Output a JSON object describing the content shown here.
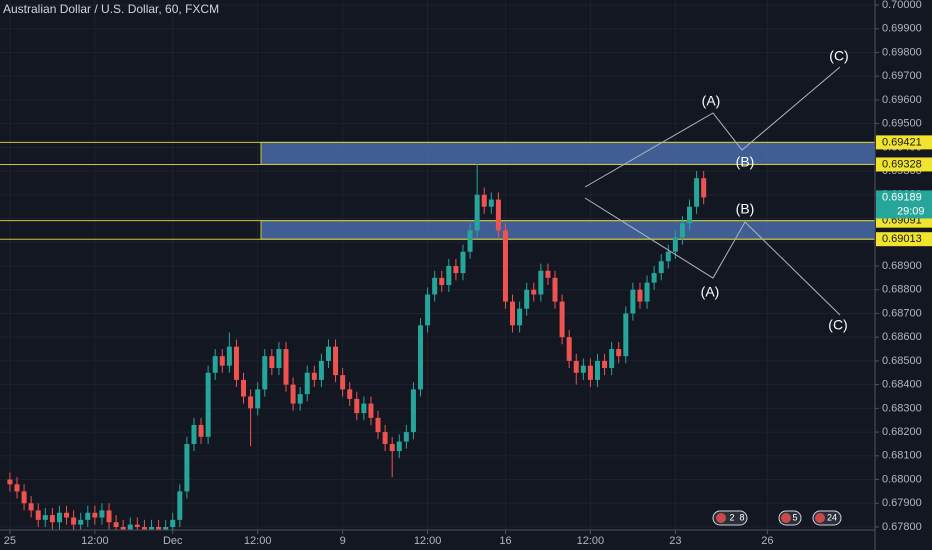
{
  "chart_data": {
    "type": "candlestick",
    "title": "Australian Dollar / U.S. Dollar, 60, FXCM",
    "up_color": "#26a69a",
    "down_color": "#ef5350",
    "grid": true,
    "open": [
      0.68,
      0.6798,
      0.6795,
      0.679,
      0.6787,
      0.6783,
      0.6785,
      0.6782,
      0.6786,
      0.6784,
      0.6781,
      0.6783,
      0.6786,
      0.6784,
      0.6787,
      0.6782,
      0.678,
      0.6779,
      0.6781,
      0.678,
      0.6779,
      0.678,
      0.6779,
      0.678,
      0.6783,
      0.6795,
      0.6815,
      0.6823,
      0.6818,
      0.6845,
      0.6852,
      0.6848,
      0.6856,
      0.6842,
      0.6835,
      0.683,
      0.6838,
      0.6852,
      0.6847,
      0.6855,
      0.684,
      0.6832,
      0.6836,
      0.6845,
      0.6842,
      0.685,
      0.6856,
      0.6844,
      0.6838,
      0.6834,
      0.6828,
      0.6832,
      0.6826,
      0.682,
      0.6815,
      0.6812,
      0.6816,
      0.682,
      0.6838,
      0.6865,
      0.6878,
      0.6885,
      0.6882,
      0.689,
      0.6887,
      0.6896,
      0.6905,
      0.692,
      0.6915,
      0.6918,
      0.6905,
      0.6875,
      0.6865,
      0.6872,
      0.688,
      0.6878,
      0.6888,
      0.6885,
      0.6875,
      0.686,
      0.685,
      0.6845,
      0.6848,
      0.6842,
      0.685,
      0.6847,
      0.6855,
      0.6852,
      0.687,
      0.688,
      0.6875,
      0.6883,
      0.6887,
      0.6892,
      0.6896,
      0.6902,
      0.6908,
      0.6915,
      0.6927
    ],
    "high": [
      0.6803,
      0.6801,
      0.6798,
      0.6793,
      0.679,
      0.6788,
      0.6788,
      0.6789,
      0.6789,
      0.6787,
      0.6786,
      0.6789,
      0.6789,
      0.679,
      0.679,
      0.6785,
      0.6783,
      0.6784,
      0.6784,
      0.6783,
      0.6783,
      0.6783,
      0.6783,
      0.6786,
      0.6798,
      0.6818,
      0.6826,
      0.6826,
      0.6848,
      0.6855,
      0.6855,
      0.6862,
      0.6859,
      0.6845,
      0.6838,
      0.6841,
      0.6855,
      0.6855,
      0.6858,
      0.6858,
      0.6843,
      0.6839,
      0.6848,
      0.6848,
      0.6853,
      0.6859,
      0.6859,
      0.6847,
      0.6841,
      0.6837,
      0.6835,
      0.6835,
      0.6829,
      0.6823,
      0.6818,
      0.6819,
      0.6823,
      0.6841,
      0.6868,
      0.6881,
      0.6888,
      0.6888,
      0.6893,
      0.6893,
      0.6899,
      0.6908,
      0.6933,
      0.6923,
      0.6921,
      0.6921,
      0.6908,
      0.6878,
      0.6875,
      0.6883,
      0.6883,
      0.6891,
      0.6891,
      0.6888,
      0.6878,
      0.6863,
      0.6853,
      0.6851,
      0.6851,
      0.6853,
      0.6853,
      0.6858,
      0.6858,
      0.6873,
      0.6883,
      0.6883,
      0.6886,
      0.689,
      0.6895,
      0.6899,
      0.6905,
      0.6911,
      0.6918,
      0.693,
      0.693
    ],
    "low": [
      0.6795,
      0.6792,
      0.6787,
      0.6784,
      0.678,
      0.678,
      0.6779,
      0.6779,
      0.6781,
      0.6778,
      0.6778,
      0.678,
      0.6781,
      0.6781,
      0.6779,
      0.6777,
      0.6776,
      0.6776,
      0.6777,
      0.6776,
      0.6776,
      0.6776,
      0.6776,
      0.6777,
      0.678,
      0.6792,
      0.6812,
      0.6815,
      0.6815,
      0.6842,
      0.6845,
      0.6845,
      0.6839,
      0.6832,
      0.6814,
      0.6827,
      0.6835,
      0.6844,
      0.6844,
      0.6837,
      0.6829,
      0.6829,
      0.6833,
      0.6839,
      0.6839,
      0.6847,
      0.6841,
      0.6835,
      0.6831,
      0.6825,
      0.6825,
      0.6823,
      0.6817,
      0.6812,
      0.6801,
      0.6809,
      0.6813,
      0.6817,
      0.6835,
      0.6862,
      0.6875,
      0.6879,
      0.6879,
      0.6884,
      0.6884,
      0.6893,
      0.6902,
      0.6912,
      0.6912,
      0.6902,
      0.6872,
      0.6862,
      0.6862,
      0.6869,
      0.6875,
      0.6875,
      0.6882,
      0.6872,
      0.6857,
      0.6847,
      0.684,
      0.6842,
      0.6839,
      0.6839,
      0.6844,
      0.6844,
      0.6849,
      0.6849,
      0.6867,
      0.6872,
      0.6872,
      0.688,
      0.6884,
      0.6889,
      0.6893,
      0.6899,
      0.6905,
      0.6912,
      0.6916
    ],
    "close": [
      0.6798,
      0.6795,
      0.679,
      0.6787,
      0.6783,
      0.6785,
      0.6782,
      0.6786,
      0.6784,
      0.6781,
      0.6783,
      0.6786,
      0.6784,
      0.6787,
      0.6782,
      0.678,
      0.6779,
      0.6781,
      0.678,
      0.6779,
      0.678,
      0.6779,
      0.678,
      0.6783,
      0.6795,
      0.6815,
      0.6823,
      0.6818,
      0.6845,
      0.6852,
      0.6848,
      0.6856,
      0.6842,
      0.6835,
      0.683,
      0.6838,
      0.6852,
      0.6847,
      0.6855,
      0.684,
      0.6832,
      0.6836,
      0.6845,
      0.6842,
      0.685,
      0.6856,
      0.6844,
      0.6838,
      0.6834,
      0.6828,
      0.6832,
      0.6826,
      0.682,
      0.6815,
      0.6812,
      0.6816,
      0.682,
      0.6838,
      0.6865,
      0.6878,
      0.6885,
      0.6882,
      0.689,
      0.6887,
      0.6896,
      0.6905,
      0.692,
      0.6915,
      0.6918,
      0.6905,
      0.6875,
      0.6865,
      0.6872,
      0.688,
      0.6878,
      0.6888,
      0.6885,
      0.6875,
      0.686,
      0.685,
      0.6845,
      0.6848,
      0.6842,
      0.685,
      0.6847,
      0.6855,
      0.6852,
      0.687,
      0.688,
      0.6875,
      0.6883,
      0.6887,
      0.6892,
      0.6896,
      0.6902,
      0.6908,
      0.6915,
      0.6927,
      0.69189
    ],
    "xlim": [
      -1.4,
      122.2
    ],
    "xticks": [
      {
        "value": 0,
        "label": "25"
      },
      {
        "value": 12,
        "label": "12:00"
      },
      {
        "value": 23,
        "label": "Dec"
      },
      {
        "value": 35,
        "label": "12:00"
      },
      {
        "value": 47,
        "label": "9"
      },
      {
        "value": 59,
        "label": "12:00"
      },
      {
        "value": 70,
        "label": "16"
      },
      {
        "value": 82,
        "label": "12:00"
      },
      {
        "value": 94,
        "label": "23"
      },
      {
        "value": 107,
        "label": "26"
      }
    ],
    "ylim": [
      0.678,
      0.7
    ],
    "yticks": [
      {
        "value": 0.7,
        "label": "0.70000"
      },
      {
        "value": 0.699,
        "label": "0.69900"
      },
      {
        "value": 0.698,
        "label": "0.69800"
      },
      {
        "value": 0.697,
        "label": "0.69700"
      },
      {
        "value": 0.696,
        "label": "0.69600"
      },
      {
        "value": 0.695,
        "label": "0.69500"
      },
      {
        "value": 0.694,
        "label": "0.69400"
      },
      {
        "value": 0.693,
        "label": "0.69300"
      },
      {
        "value": 0.692,
        "label": "0.69200"
      },
      {
        "value": 0.691,
        "label": "0.69100"
      },
      {
        "value": 0.69,
        "label": "0.69000"
      },
      {
        "value": 0.689,
        "label": "0.68900"
      },
      {
        "value": 0.688,
        "label": "0.68800"
      },
      {
        "value": 0.687,
        "label": "0.68700"
      },
      {
        "value": 0.686,
        "label": "0.68600"
      },
      {
        "value": 0.685,
        "label": "0.68500"
      },
      {
        "value": 0.684,
        "label": "0.68400"
      },
      {
        "value": 0.683,
        "label": "0.68300"
      },
      {
        "value": 0.682,
        "label": "0.68200"
      },
      {
        "value": 0.681,
        "label": "0.68100"
      },
      {
        "value": 0.68,
        "label": "0.68000"
      },
      {
        "value": 0.679,
        "label": "0.67900"
      },
      {
        "value": 0.678,
        "label": "0.67800"
      }
    ],
    "zones": [
      {
        "top": 0.69421,
        "bottom": 0.69328
      },
      {
        "top": 0.69091,
        "bottom": 0.69013
      }
    ],
    "zone_color": "#4a6ba8",
    "zone_line_color": "#c9c93a",
    "last_price": 0.69189,
    "countdown": "29:09",
    "wave_labels_upper": [
      "(A)",
      "(B)",
      "(C)"
    ],
    "wave_labels_lower": [
      "(A)",
      "(B)",
      "(C)"
    ],
    "events": [
      "2",
      "8",
      "5",
      "24"
    ]
  }
}
